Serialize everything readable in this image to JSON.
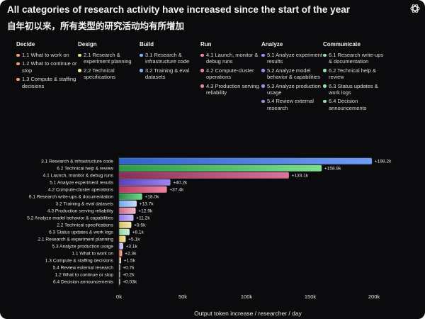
{
  "title": "All categories of research activity have increased since the start of the year",
  "subtitle": "自年初以来，所有类型的研究活动均有所增加",
  "logo_icon": "openai-logo-icon",
  "legend": [
    {
      "name": "Decide",
      "items": [
        {
          "label": "1.1 What to work on",
          "color": "#f2a079"
        },
        {
          "label": "1.2 What to continue or stop",
          "color": "#f2a079"
        },
        {
          "label": "1.3 Compute & staffing decisions",
          "color": "#f2a079"
        }
      ]
    },
    {
      "name": "Design",
      "items": [
        {
          "label": "2.1 Research & experiment planning",
          "color": "#f3dd90"
        },
        {
          "label": "2.2 Technical specifications",
          "color": "#f3dd90"
        }
      ]
    },
    {
      "name": "Build",
      "items": [
        {
          "label": "3.1 Research & infrastructure code",
          "color": "#7eb5f5"
        },
        {
          "label": "3.2 Training & eval datasets",
          "color": "#7eb5f5"
        }
      ]
    },
    {
      "name": "Run",
      "items": [
        {
          "label": "4.1 Launch, monitor & debug runs",
          "color": "#e18aa6"
        },
        {
          "label": "4.2 Compute-cluster operations",
          "color": "#e18aa6"
        },
        {
          "label": "4.3 Production serving reliability",
          "color": "#e18aa6"
        }
      ]
    },
    {
      "name": "Analyze",
      "items": [
        {
          "label": "5.1 Analyze experiment results",
          "color": "#a38af0"
        },
        {
          "label": "5.2 Analyze model behavior & capabilities",
          "color": "#a38af0"
        },
        {
          "label": "5.3 Analyze production usage",
          "color": "#a38af0"
        },
        {
          "label": "5.4 Review external research",
          "color": "#a38af0"
        }
      ]
    },
    {
      "name": "Communicate",
      "items": [
        {
          "label": "6.1 Research write-ups & documentation",
          "color": "#8fe0a3"
        },
        {
          "label": "6.2 Technical help & review",
          "color": "#8fe0a3"
        },
        {
          "label": "6.3 Status updates & work logs",
          "color": "#8fe0a3"
        },
        {
          "label": "6.4 Decision announcements",
          "color": "#8fe0a3"
        }
      ]
    }
  ],
  "chart_data": {
    "type": "bar",
    "orientation": "horizontal",
    "categories": [
      "3.1 Research & infrastructure code",
      "6.2 Technical help & review",
      "4.1 Launch, monitor & debug runs",
      "5.1 Analyze experiment results",
      "4.2 Compute-cluster operations",
      "6.1 Research write-ups & documentation",
      "3.2 Training & eval datasets",
      "4.3 Production serving reliability",
      "5.2 Analyze model behavior & capabilities",
      "2.2 Technical specifications",
      "6.3 Status updates & work logs",
      "2.1 Research & experiment planning",
      "5.3 Analyze production usage",
      "1.1 What to work on",
      "1.3 Compute & staffing decisions",
      "5.4 Review external research",
      "1.2 What to continue or stop",
      "6.4 Decision announcements"
    ],
    "values": [
      198200,
      158800,
      133100,
      40200,
      37400,
      18000,
      13700,
      12900,
      11200,
      9500,
      8100,
      5100,
      3100,
      2300,
      1500,
      700,
      200,
      30
    ],
    "value_labels": [
      "+198.2k",
      "+158.8k",
      "+133.1k",
      "+40.2k",
      "+37.4k",
      "+18.0k",
      "+13.7k",
      "+12.9k",
      "+11.2k",
      "+9.5k",
      "+8.1k",
      "+5.1k",
      "+3.1k",
      "+2.3k",
      "+1.5k",
      "+0.7k",
      "+0.2k",
      "+0.03k"
    ],
    "colors": [
      [
        "#2f63c9",
        "#6f9cf2"
      ],
      [
        "#2c9a48",
        "#7be08e"
      ],
      [
        "#8c2d55",
        "#d8739a"
      ],
      [
        "#5a3fbf",
        "#9f86ee"
      ],
      [
        "#b8355f",
        "#ee86a4"
      ],
      [
        "#2c8a48",
        "#74d88b"
      ],
      [
        "#6fa8ea",
        "#c8e0fb"
      ],
      [
        "#c86b88",
        "#f4bccd"
      ],
      [
        "#9478e6",
        "#cbbdf7"
      ],
      [
        "#d8c067",
        "#f8eab0"
      ],
      [
        "#8fd59f",
        "#d2f1d8"
      ],
      [
        "#e0c462",
        "#f7e39c"
      ],
      [
        "#b2a1f2",
        "#dfd6fb"
      ],
      [
        "#e47a4e",
        "#f5ad8e"
      ],
      [
        "#f0b597",
        "#fad8c6"
      ],
      [
        "#c7bdf4",
        "#ebe5fc"
      ],
      [
        "#f6c9b2",
        "#fbe3d6"
      ],
      [
        "#cdf0d5",
        "#eaf9ed"
      ]
    ],
    "xlim": [
      0,
      200000
    ],
    "xticks": [
      0,
      50000,
      100000,
      150000,
      200000
    ],
    "xtick_labels": [
      "0k",
      "50k",
      "100k",
      "150k",
      "200k"
    ],
    "xlabel": "Output token increase / researcher / day",
    "ylabel": "",
    "grid": false,
    "legend_position": "top"
  }
}
